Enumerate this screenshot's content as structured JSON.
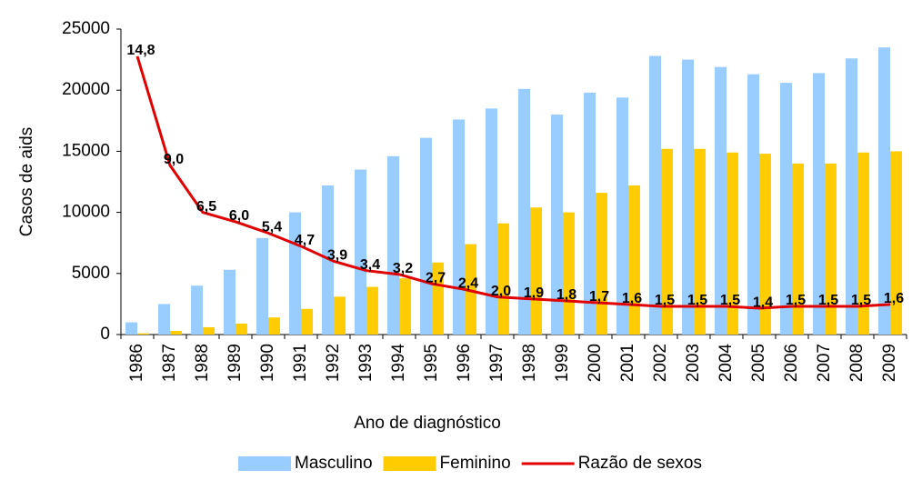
{
  "chart_data": {
    "type": "bar",
    "x_label": "Ano de diagnóstico",
    "y_label": "Casos de aids",
    "categories": [
      "1986",
      "1987",
      "1988",
      "1989",
      "1990",
      "1991",
      "1992",
      "1993",
      "1994",
      "1995",
      "1996",
      "1997",
      "1998",
      "1999",
      "2000",
      "2001",
      "2002",
      "2003",
      "2004",
      "2005",
      "2006",
      "2007",
      "2008",
      "2009"
    ],
    "series": [
      {
        "name": "Masculino",
        "type": "bar",
        "color": "#99ccff",
        "values": [
          1000,
          2500,
          4000,
          5300,
          7900,
          10000,
          12200,
          13500,
          14600,
          16100,
          17600,
          18500,
          20100,
          18000,
          19800,
          19400,
          22800,
          22500,
          21900,
          21300,
          20600,
          21400,
          22600,
          23500
        ]
      },
      {
        "name": "Feminino",
        "type": "bar",
        "color": "#ffcc00",
        "values": [
          100,
          300,
          600,
          900,
          1400,
          2100,
          3100,
          3900,
          4600,
          5900,
          7400,
          9100,
          10400,
          10000,
          11600,
          12200,
          15200,
          15200,
          14900,
          14800,
          14000,
          14000,
          14900,
          15000
        ]
      },
      {
        "name": "Razão de sexos",
        "type": "line",
        "axis": "y2",
        "color": "#e00000",
        "values": [
          14.8,
          9.0,
          6.5,
          6.0,
          5.4,
          4.7,
          3.9,
          3.4,
          3.2,
          2.7,
          2.4,
          2.0,
          1.9,
          1.8,
          1.7,
          1.6,
          1.5,
          1.5,
          1.5,
          1.4,
          1.5,
          1.5,
          1.5,
          1.6
        ],
        "value_labels": [
          "14,8",
          "9,0",
          "6,5",
          "6,0",
          "5,4",
          "4,7",
          "3,9",
          "3,4",
          "3,2",
          "2,7",
          "2,4",
          "2,0",
          "1,9",
          "1,8",
          "1,7",
          "1,6",
          "1,5",
          "1,5",
          "1,5",
          "1,4",
          "1,5",
          "1,5",
          "1,5",
          "1,6"
        ]
      }
    ],
    "ylim": [
      0,
      25000
    ],
    "yticks": [
      0,
      5000,
      10000,
      15000,
      20000,
      25000
    ],
    "y2lim": [
      0,
      16.25
    ],
    "legend": "bottom"
  }
}
